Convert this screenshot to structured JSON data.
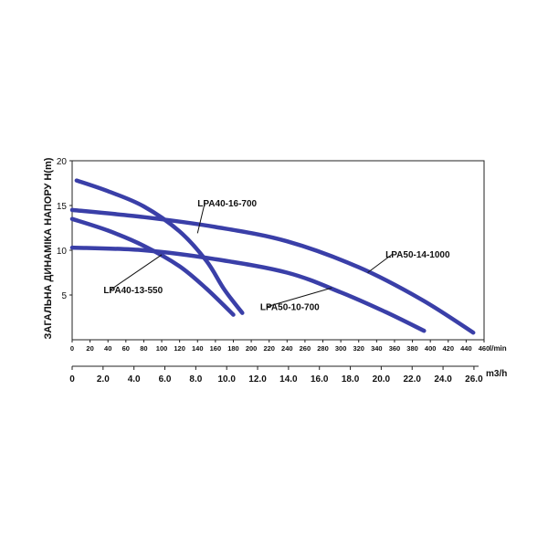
{
  "chart_data": {
    "type": "line",
    "ylabel": "ЗАГАЛЬНА ДИНАМІКА НАПОРУ H(m)",
    "x_unit_primary": "l/min",
    "x_unit_secondary": "m3/h",
    "xlim": [
      0,
      460
    ],
    "ylim": [
      0,
      20
    ],
    "x_ticks_lpm": [
      "0",
      "20",
      "40",
      "60",
      "80",
      "100",
      "120",
      "140",
      "160",
      "180",
      "200",
      "220",
      "240",
      "260",
      "280",
      "300",
      "320",
      "340",
      "360",
      "380",
      "400",
      "420",
      "440",
      "460"
    ],
    "x_ticks_m3h": [
      "0",
      "2.0",
      "4.0",
      "6.0",
      "8.0",
      "10.0",
      "12.0",
      "14.0",
      "16.0",
      "18.0",
      "20.0",
      "22.0",
      "24.0",
      "26.0"
    ],
    "y_ticks": [
      "5",
      "10",
      "15",
      "20"
    ],
    "curve_color": "#3a3fa8",
    "series": [
      {
        "name": "LPA40-16-700",
        "x": [
          5,
          40,
          80,
          120,
          150,
          170,
          190
        ],
        "y": [
          17.8,
          16.6,
          14.9,
          12.1,
          8.8,
          5.6,
          3.0
        ]
      },
      {
        "name": "LPA40-13-550",
        "x": [
          0,
          40,
          80,
          120,
          150,
          180
        ],
        "y": [
          13.5,
          12.2,
          10.5,
          8.2,
          5.7,
          2.8
        ]
      },
      {
        "name": "LPA50-14-1000",
        "x": [
          0,
          80,
          160,
          240,
          320,
          390,
          448
        ],
        "y": [
          14.5,
          13.7,
          12.6,
          11.0,
          8.1,
          4.5,
          0.8
        ]
      },
      {
        "name": "LPA50-10-700",
        "x": [
          0,
          80,
          160,
          240,
          300,
          350,
          393
        ],
        "y": [
          10.3,
          10.0,
          9.0,
          7.5,
          5.3,
          3.1,
          1.0
        ]
      }
    ],
    "labels": [
      {
        "series": "LPA40-16-700",
        "text": "LPA40-16-700",
        "anchor_x": 140,
        "anchor_y": 11.9,
        "text_x": 140,
        "text_y": 14.9
      },
      {
        "series": "LPA40-13-550",
        "text": "LPA40-13-550",
        "anchor_x": 100,
        "anchor_y": 9.5,
        "text_x": 35,
        "text_y": 5.2
      },
      {
        "series": "LPA50-14-1000",
        "text": "LPA50-14-1000",
        "anchor_x": 330,
        "anchor_y": 7.5,
        "text_x": 350,
        "text_y": 9.2
      },
      {
        "series": "LPA50-10-700",
        "text": "LPA50-10-700",
        "anchor_x": 290,
        "anchor_y": 5.8,
        "text_x": 210,
        "text_y": 3.3
      }
    ]
  }
}
